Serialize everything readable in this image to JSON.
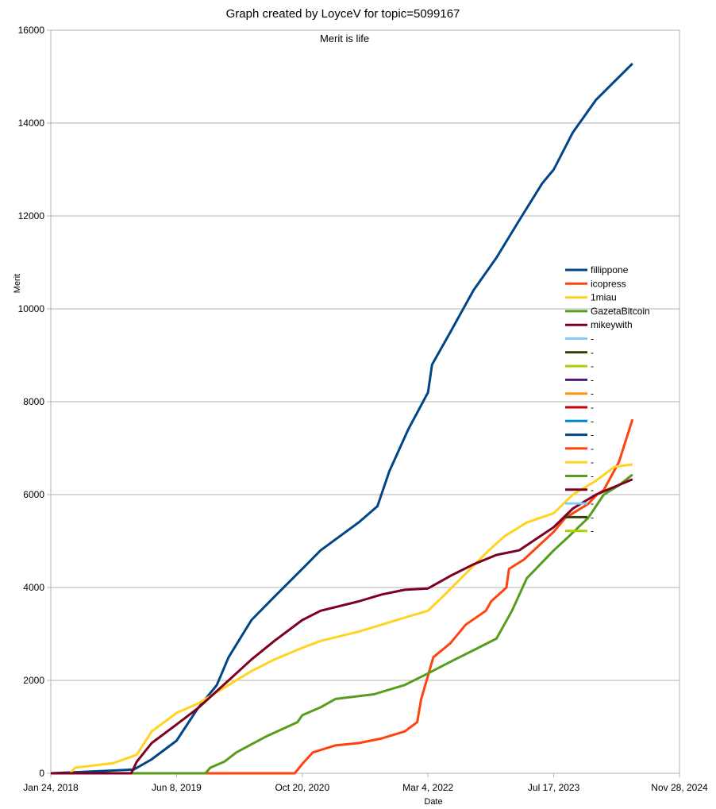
{
  "chart_data": {
    "type": "line",
    "title": "Graph created by LoyceV for topic=5099167",
    "subtitle": "Merit is life",
    "xlabel": "Date",
    "ylabel": "Merit",
    "xlim": [
      "2018-01-24",
      "2024-11-28"
    ],
    "ylim": [
      0,
      16000
    ],
    "x_ticks": [
      "Jan 24, 2018",
      "Jun 8, 2019",
      "Oct 20, 2020",
      "Mar 4, 2022",
      "Jul 17, 2023",
      "Nov 28, 2024"
    ],
    "y_ticks": [
      "0",
      "2000",
      "4000",
      "6000",
      "8000",
      "10000",
      "12000",
      "14000",
      "16000"
    ],
    "grid": "horizontal",
    "legend_position": "right",
    "series": [
      {
        "name": "fillippone",
        "color": "#004586",
        "points": [
          [
            "2018-01-24",
            0
          ],
          [
            "2018-06-01",
            30
          ],
          [
            "2018-10-01",
            60
          ],
          [
            "2018-12-20",
            80
          ],
          [
            "2019-03-01",
            300
          ],
          [
            "2019-06-08",
            700
          ],
          [
            "2019-09-01",
            1400
          ],
          [
            "2019-11-15",
            1900
          ],
          [
            "2020-01-01",
            2500
          ],
          [
            "2020-04-01",
            3300
          ],
          [
            "2020-07-01",
            3800
          ],
          [
            "2020-10-20",
            4400
          ],
          [
            "2021-01-01",
            4800
          ],
          [
            "2021-06-01",
            5400
          ],
          [
            "2021-08-15",
            5750
          ],
          [
            "2021-10-01",
            6500
          ],
          [
            "2021-12-15",
            7400
          ],
          [
            "2022-03-04",
            8200
          ],
          [
            "2022-03-20",
            8800
          ],
          [
            "2022-06-01",
            9500
          ],
          [
            "2022-09-01",
            10400
          ],
          [
            "2022-12-01",
            11100
          ],
          [
            "2023-03-01",
            11900
          ],
          [
            "2023-06-01",
            12700
          ],
          [
            "2023-07-17",
            13000
          ],
          [
            "2023-10-01",
            13800
          ],
          [
            "2024-01-01",
            14500
          ],
          [
            "2024-05-25",
            15280
          ]
        ]
      },
      {
        "name": "icopress",
        "color": "#ff420e",
        "points": [
          [
            "2018-01-24",
            0
          ],
          [
            "2020-09-20",
            0
          ],
          [
            "2020-10-20",
            200
          ],
          [
            "2020-12-01",
            450
          ],
          [
            "2021-03-01",
            600
          ],
          [
            "2021-06-01",
            650
          ],
          [
            "2021-09-01",
            750
          ],
          [
            "2021-12-01",
            900
          ],
          [
            "2022-01-20",
            1100
          ],
          [
            "2022-02-05",
            1600
          ],
          [
            "2022-03-04",
            2100
          ],
          [
            "2022-03-25",
            2500
          ],
          [
            "2022-06-01",
            2800
          ],
          [
            "2022-08-01",
            3200
          ],
          [
            "2022-10-20",
            3500
          ],
          [
            "2022-11-10",
            3700
          ],
          [
            "2023-01-10",
            4000
          ],
          [
            "2023-01-20",
            4400
          ],
          [
            "2023-03-20",
            4600
          ],
          [
            "2023-07-17",
            5200
          ],
          [
            "2023-09-01",
            5500
          ],
          [
            "2023-12-01",
            5800
          ],
          [
            "2024-01-05",
            6000
          ],
          [
            "2024-02-01",
            6100
          ],
          [
            "2024-04-01",
            6700
          ],
          [
            "2024-05-25",
            7620
          ]
        ]
      },
      {
        "name": "1miau",
        "color": "#ffd320",
        "points": [
          [
            "2018-01-24",
            0
          ],
          [
            "2018-04-10",
            0
          ],
          [
            "2018-05-01",
            120
          ],
          [
            "2018-10-01",
            220
          ],
          [
            "2019-01-01",
            400
          ],
          [
            "2019-03-01",
            900
          ],
          [
            "2019-06-08",
            1300
          ],
          [
            "2019-09-01",
            1500
          ],
          [
            "2020-01-01",
            1900
          ],
          [
            "2020-04-01",
            2200
          ],
          [
            "2020-07-01",
            2450
          ],
          [
            "2020-10-20",
            2700
          ],
          [
            "2021-01-01",
            2850
          ],
          [
            "2021-06-01",
            3050
          ],
          [
            "2021-09-01",
            3200
          ],
          [
            "2021-12-01",
            3350
          ],
          [
            "2022-03-04",
            3500
          ],
          [
            "2022-05-01",
            3800
          ],
          [
            "2022-08-01",
            4300
          ],
          [
            "2022-11-01",
            4800
          ],
          [
            "2023-01-01",
            5100
          ],
          [
            "2023-04-01",
            5400
          ],
          [
            "2023-07-17",
            5600
          ],
          [
            "2023-10-01",
            6000
          ],
          [
            "2024-01-01",
            6300
          ],
          [
            "2024-03-15",
            6600
          ],
          [
            "2024-05-25",
            6650
          ]
        ]
      },
      {
        "name": "GazetaBitcoin",
        "color": "#579d1c",
        "points": [
          [
            "2018-01-24",
            0
          ],
          [
            "2019-10-01",
            0
          ],
          [
            "2019-10-20",
            120
          ],
          [
            "2019-12-15",
            250
          ],
          [
            "2020-02-01",
            450
          ],
          [
            "2020-06-01",
            800
          ],
          [
            "2020-10-01",
            1100
          ],
          [
            "2020-10-20",
            1250
          ],
          [
            "2021-01-01",
            1420
          ],
          [
            "2021-03-01",
            1600
          ],
          [
            "2021-08-01",
            1700
          ],
          [
            "2021-12-01",
            1900
          ],
          [
            "2022-03-04",
            2150
          ],
          [
            "2022-06-01",
            2400
          ],
          [
            "2022-09-01",
            2650
          ],
          [
            "2022-12-01",
            2900
          ],
          [
            "2023-02-01",
            3500
          ],
          [
            "2023-04-01",
            4200
          ],
          [
            "2023-07-17",
            4800
          ],
          [
            "2023-09-15",
            5100
          ],
          [
            "2023-12-01",
            5500
          ],
          [
            "2024-02-01",
            6000
          ],
          [
            "2024-04-01",
            6200
          ],
          [
            "2024-05-25",
            6430
          ]
        ]
      },
      {
        "name": "mikeywith",
        "color": "#7e0021",
        "points": [
          [
            "2018-01-24",
            0
          ],
          [
            "2018-12-10",
            0
          ],
          [
            "2019-01-01",
            250
          ],
          [
            "2019-03-01",
            650
          ],
          [
            "2019-06-08",
            1050
          ],
          [
            "2019-09-01",
            1400
          ],
          [
            "2020-01-01",
            2000
          ],
          [
            "2020-04-01",
            2450
          ],
          [
            "2020-07-01",
            2850
          ],
          [
            "2020-10-20",
            3300
          ],
          [
            "2021-01-01",
            3500
          ],
          [
            "2021-06-01",
            3700
          ],
          [
            "2021-09-01",
            3850
          ],
          [
            "2021-12-01",
            3950
          ],
          [
            "2022-03-04",
            3980
          ],
          [
            "2022-06-01",
            4250
          ],
          [
            "2022-09-01",
            4500
          ],
          [
            "2022-12-01",
            4700
          ],
          [
            "2023-03-01",
            4800
          ],
          [
            "2023-07-17",
            5300
          ],
          [
            "2023-10-01",
            5700
          ],
          [
            "2024-01-01",
            6000
          ],
          [
            "2024-05-25",
            6330
          ]
        ]
      }
    ],
    "legend": [
      {
        "label": "fillippone",
        "color": "#004586"
      },
      {
        "label": "icopress",
        "color": "#ff420e"
      },
      {
        "label": "1miau",
        "color": "#ffd320"
      },
      {
        "label": "GazetaBitcoin",
        "color": "#579d1c"
      },
      {
        "label": "mikeywith",
        "color": "#7e0021"
      },
      {
        "label": "-",
        "color": "#83caff"
      },
      {
        "label": "-",
        "color": "#314004"
      },
      {
        "label": "-",
        "color": "#aecf00"
      },
      {
        "label": "-",
        "color": "#4b1f6f"
      },
      {
        "label": "-",
        "color": "#ff950e"
      },
      {
        "label": "-",
        "color": "#c5000b"
      },
      {
        "label": "-",
        "color": "#0084d1"
      },
      {
        "label": "-",
        "color": "#004586"
      },
      {
        "label": "-",
        "color": "#ff420e"
      },
      {
        "label": "-",
        "color": "#ffd320"
      },
      {
        "label": "-",
        "color": "#579d1c"
      },
      {
        "label": "-",
        "color": "#7e0021"
      },
      {
        "label": "-",
        "color": "#83caff"
      },
      {
        "label": "-",
        "color": "#314004"
      },
      {
        "label": "-",
        "color": "#aecf00"
      }
    ]
  }
}
